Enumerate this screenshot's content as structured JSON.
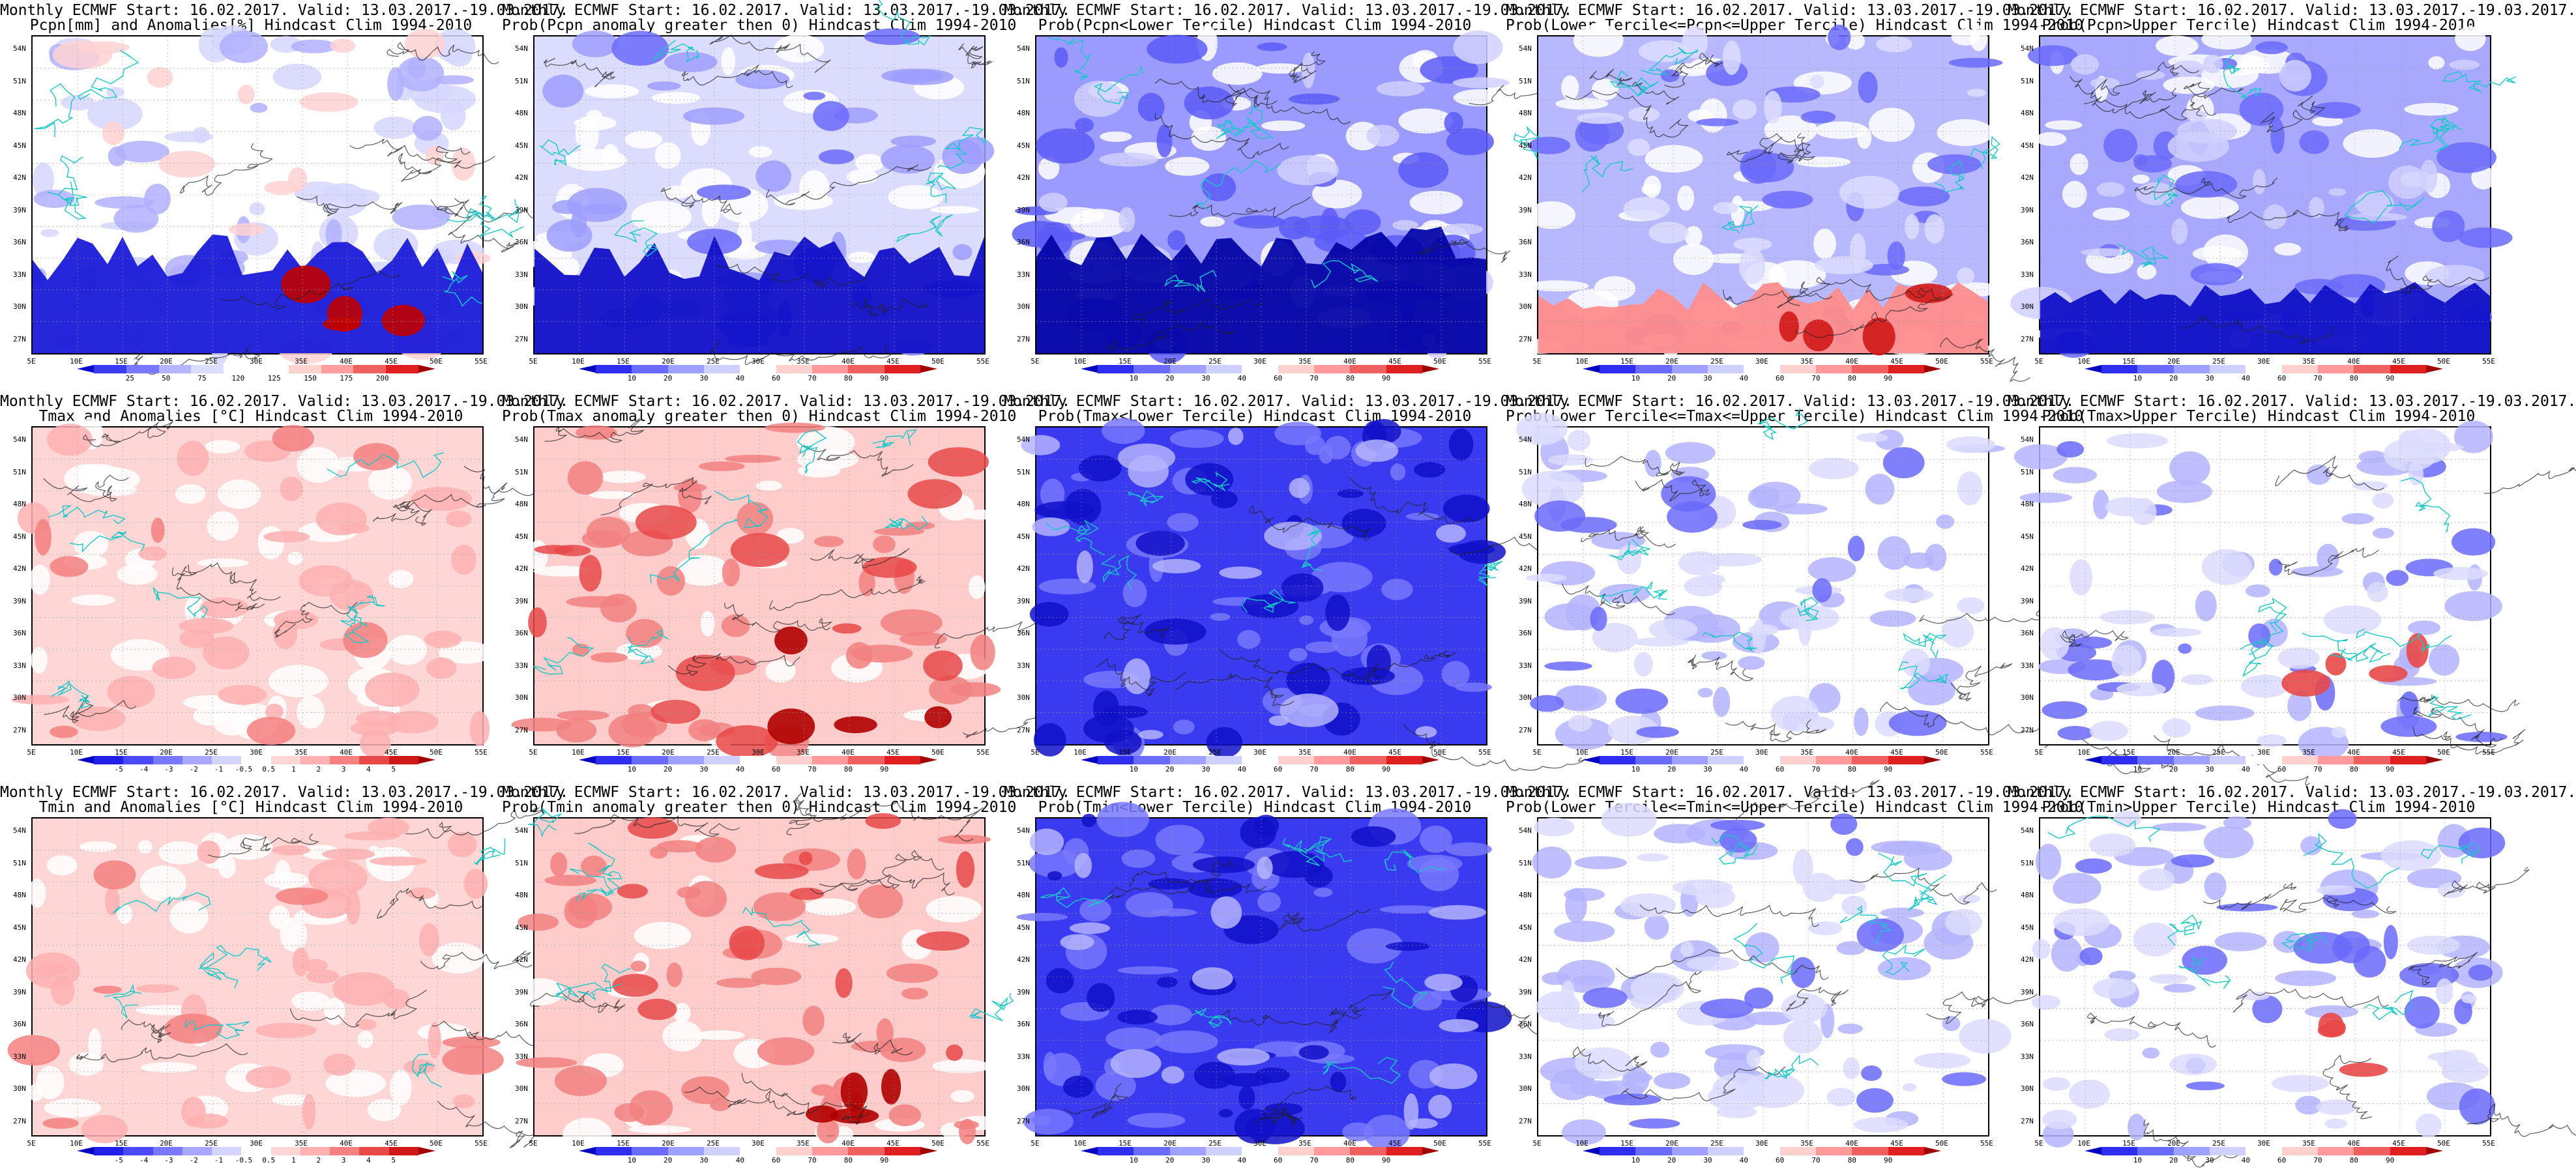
{
  "lat_labels": [
    "54N",
    "51N",
    "48N",
    "45N",
    "42N",
    "39N",
    "36N",
    "33N",
    "30N",
    "27N"
  ],
  "lon_labels": [
    "5E",
    "10E",
    "15E",
    "20E",
    "25E",
    "30E",
    "35E",
    "40E",
    "45E",
    "50E",
    "55E"
  ],
  "scales": {
    "pcpn_anom": {
      "ticks": [
        "25",
        "50",
        "75",
        "120",
        "125",
        "150",
        "175",
        "200"
      ],
      "colors": [
        "#0a0ad0",
        "#3a3af0",
        "#7878ff",
        "#b4b4ff",
        "#dcdcff",
        "#ffffff",
        "#ffffff",
        "#ffd2d2",
        "#ff9e9e",
        "#f06060",
        "#e02020",
        "#a00000"
      ]
    },
    "prob": {
      "ticks": [
        "10",
        "20",
        "30",
        "40",
        "60",
        "70",
        "80",
        "90"
      ],
      "colors": [
        "#0505c0",
        "#2e2ef0",
        "#6a6afc",
        "#a0a0ff",
        "#d0d0ff",
        "#ffffff",
        "#ffd0d0",
        "#ff9a9a",
        "#f06060",
        "#e02020",
        "#a00000"
      ]
    },
    "temp_anom": {
      "ticks": [
        "-5",
        "-4",
        "-3",
        "-2",
        "-1",
        "-0.5",
        "0.5",
        "1",
        "2",
        "3",
        "4",
        "5"
      ],
      "colors": [
        "#0505c0",
        "#2020e8",
        "#4a4af8",
        "#7878ff",
        "#a8a8ff",
        "#d4d4ff",
        "#ffffff",
        "#ffd6d6",
        "#ffb0b0",
        "#f48080",
        "#e84848",
        "#d01818",
        "#a00000"
      ]
    }
  },
  "panels": [
    {
      "title1": "Monthly ECMWF Start: 16.02.2017. Valid: 13.03.2017.-19.03.2017.",
      "title2": "Pcpn[mm] and Anomalies[%] Hindcast Clim 1994-2010",
      "scale": "pcpn_anom",
      "theme": "pcpn_anom"
    },
    {
      "title1": "Monthly ECMWF Start: 16.02.2017. Valid: 13.03.2017.-19.03.2017.",
      "title2": "Prob(Pcpn anomaly greater then 0) Hindcast Clim 1994-2010",
      "scale": "prob",
      "theme": "pcpn_prob"
    },
    {
      "title1": "Monthly ECMWF Start: 16.02.2017. Valid: 13.03.2017.-19.03.2017.",
      "title2": "Prob(Pcpn<Lower Tercile) Hindcast Clim 1994-2010",
      "scale": "prob",
      "theme": "pcpn_low"
    },
    {
      "title1": "Monthly ECMWF Start: 16.02.2017. Valid: 13.03.2017.-19.03.2017.",
      "title2": "Prob(Lower Tercile<=Pcpn<=Upper Tercile) Hindcast Clim 1994-2010",
      "scale": "prob",
      "theme": "pcpn_mid"
    },
    {
      "title1": "Monthly ECMWF Start: 16.02.2017. Valid: 13.03.2017.-19.03.2017.",
      "title2": "Prob(Pcpn>Upper Tercile) Hindcast Clim 1994-2010",
      "scale": "prob",
      "theme": "pcpn_up"
    },
    {
      "title1": "Monthly ECMWF Start: 16.02.2017. Valid: 13.03.2017.-19.03.2017.",
      "title2": "Tmax and Anomalies [°C] Hindcast Clim 1994-2010",
      "scale": "temp_anom",
      "theme": "t_anom"
    },
    {
      "title1": "Monthly ECMWF Start: 16.02.2017. Valid: 13.03.2017.-19.03.2017.",
      "title2": "Prob(Tmax anomaly greater then 0) Hindcast Clim 1994-2010",
      "scale": "prob",
      "theme": "t_prob"
    },
    {
      "title1": "Monthly ECMWF Start: 16.02.2017. Valid: 13.03.2017.-19.03.2017.",
      "title2": "Prob(Tmax<Lower Tercile) Hindcast Clim 1994-2010",
      "scale": "prob",
      "theme": "t_low"
    },
    {
      "title1": "Monthly ECMWF Start: 16.02.2017. Valid: 13.03.2017.-19.03.2017.",
      "title2": "Prob(Lower Tercile<=Tmax<=Upper Tercile) Hindcast Clim 1994-2010",
      "scale": "prob",
      "theme": "t_mid"
    },
    {
      "title1": "Monthly ECMWF Start: 16.02.2017. Valid: 13.03.2017.-19.03.2017.",
      "title2": "Prob(Tmax>Upper Tercile) Hindcast Clim 1994-2010",
      "scale": "prob",
      "theme": "t_up"
    },
    {
      "title1": "Monthly ECMWF Start: 16.02.2017. Valid: 13.03.2017.-19.03.2017.",
      "title2": "Tmin and Anomalies [°C] Hindcast Clim 1994-2010",
      "scale": "temp_anom",
      "theme": "t_anom"
    },
    {
      "title1": "Monthly ECMWF Start: 16.02.2017. Valid: 13.03.2017.-19.03.2017.",
      "title2": "Prob(Tmin anomaly greater then 0) Hindcast Clim 1994-2010",
      "scale": "prob",
      "theme": "t_prob"
    },
    {
      "title1": "Monthly ECMWF Start: 16.02.2017. Valid: 13.03.2017.-19.03.2017.",
      "title2": "Prob(Tmin<Lower Tercile) Hindcast Clim 1994-2010",
      "scale": "prob",
      "theme": "t_low"
    },
    {
      "title1": "Monthly ECMWF Start: 16.02.2017. Valid: 13.03.2017.-19.03.2017.",
      "title2": "Prob(Lower Tercile<=Tmin<=Upper Tercile) Hindcast Clim 1994-2010",
      "scale": "prob",
      "theme": "t_mid"
    },
    {
      "title1": "Monthly ECMWF Start: 16.02.2017. Valid: 13.03.2017.-19.03.2017.",
      "title2": "Prob(Tmin>Upper Tercile) Hindcast Clim 1994-2010",
      "scale": "prob",
      "theme": "t_up"
    }
  ]
}
